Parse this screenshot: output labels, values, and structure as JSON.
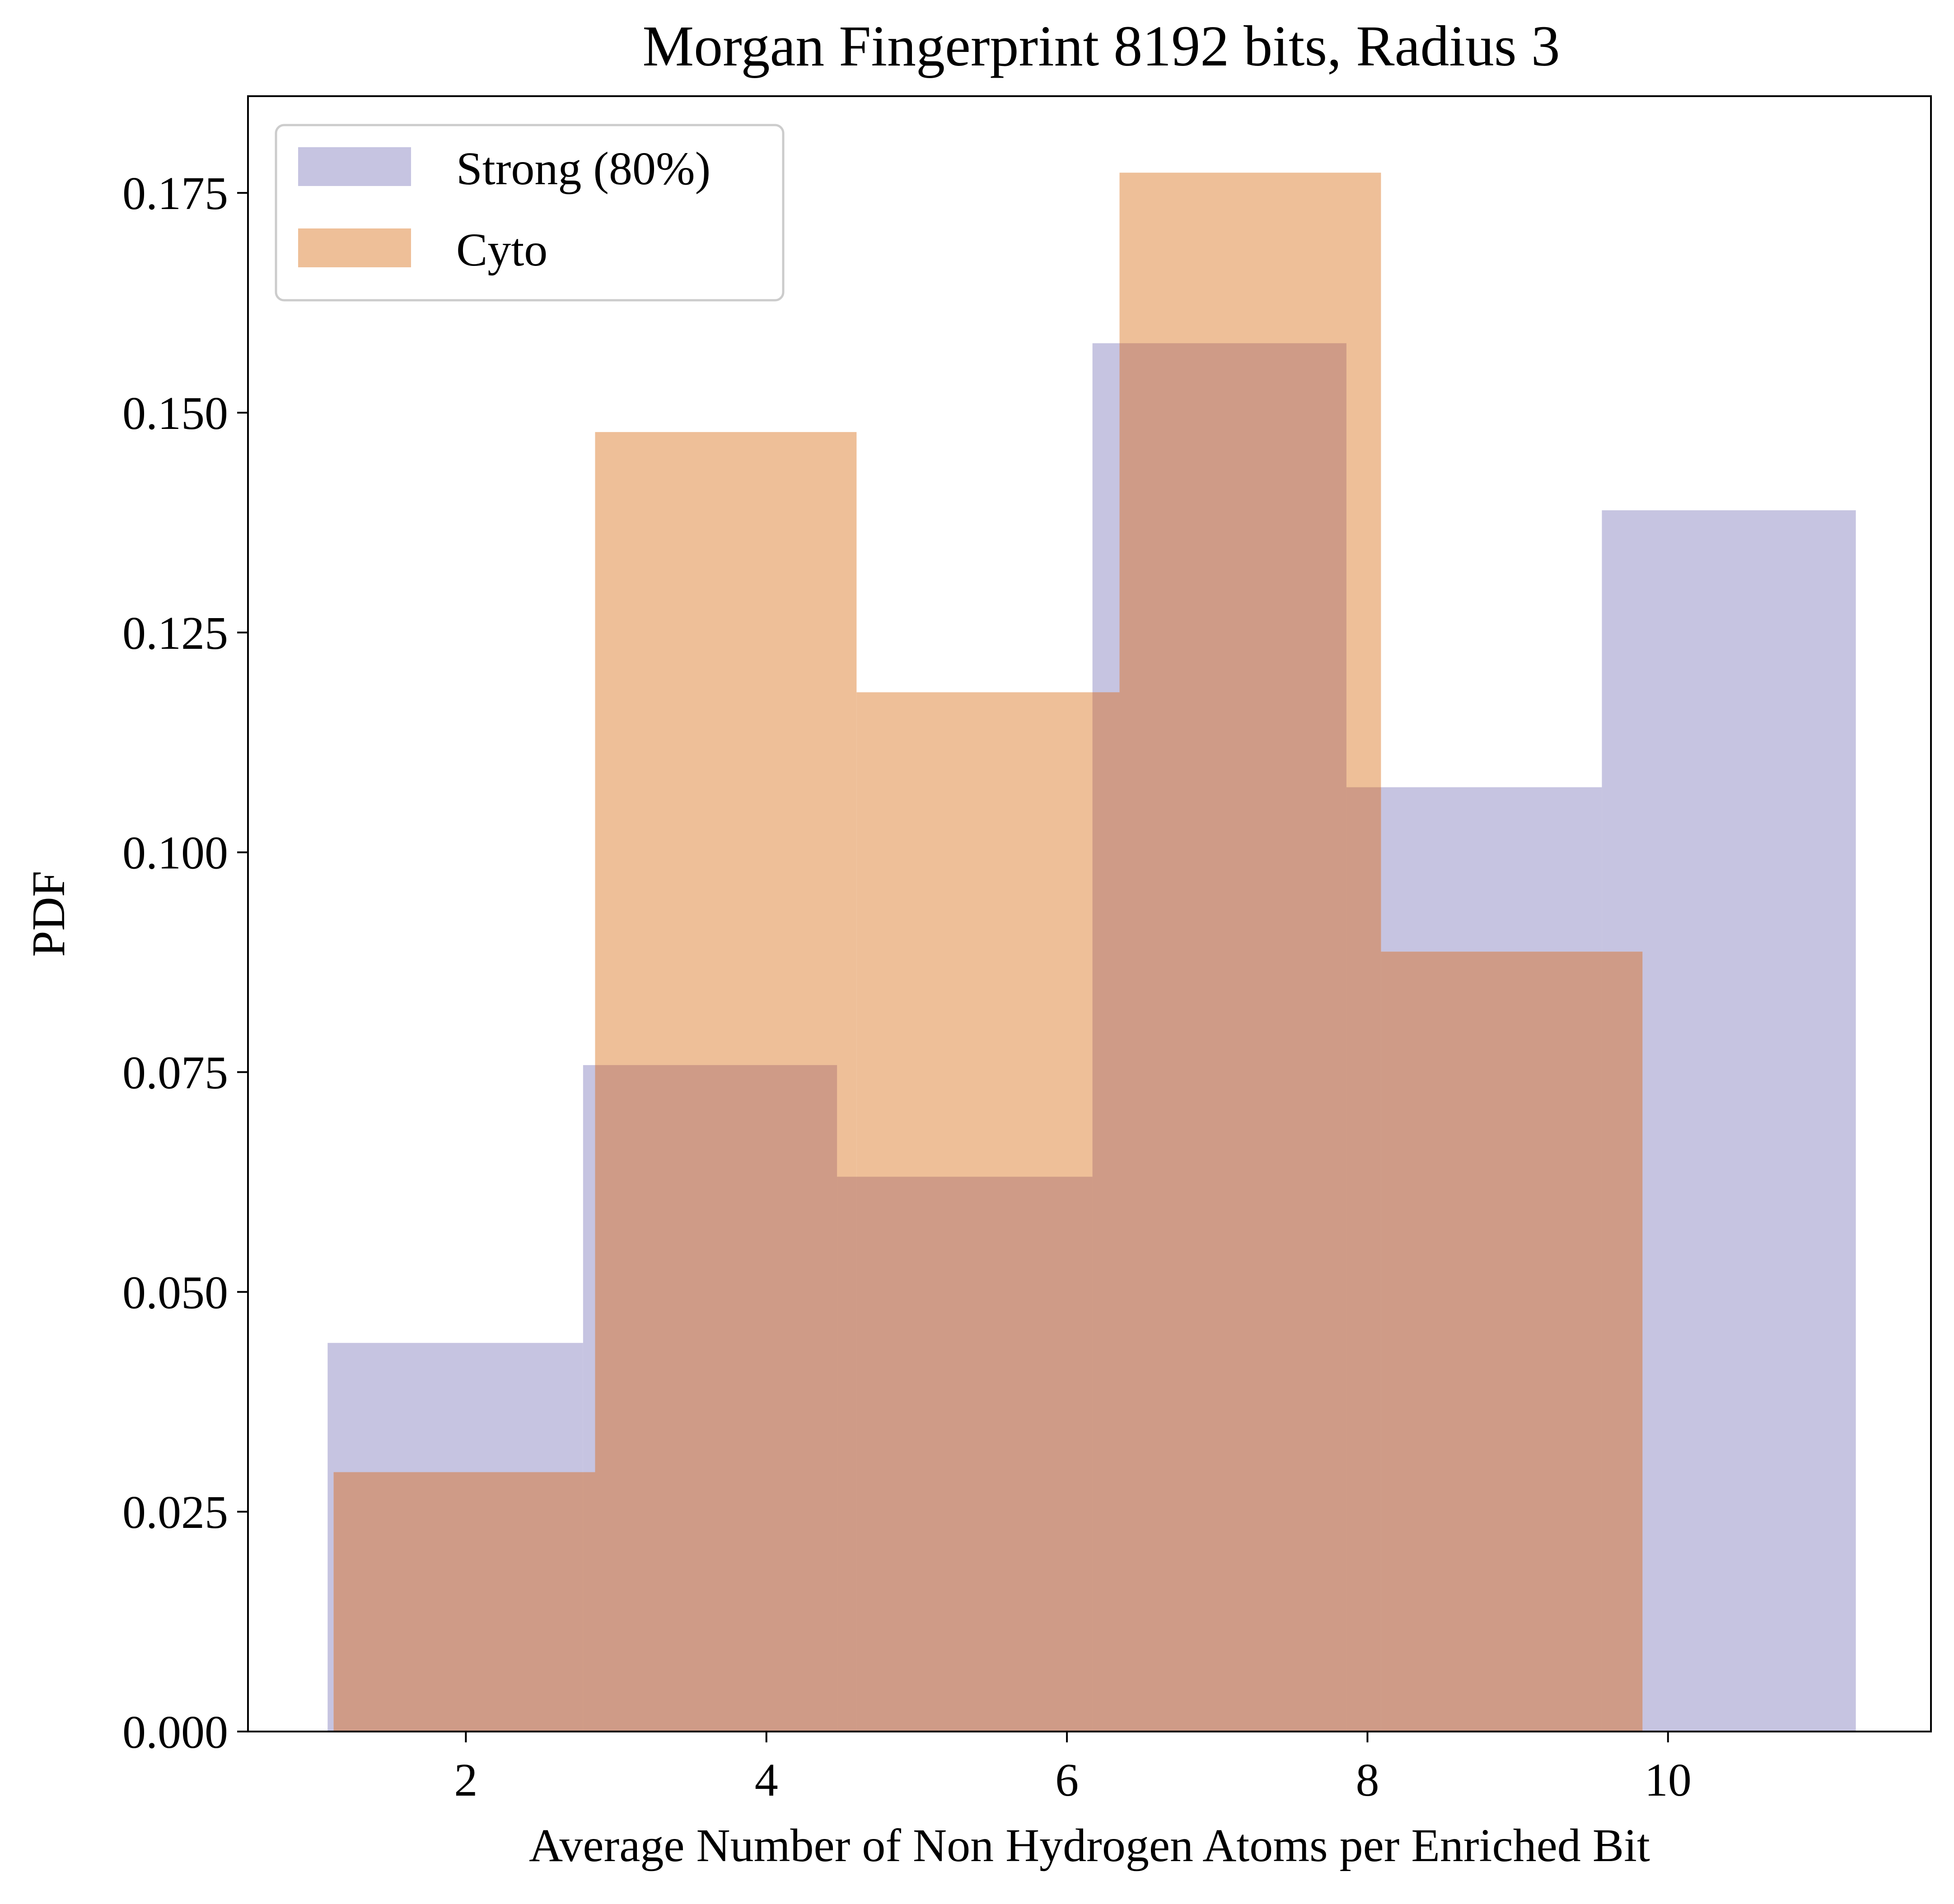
{
  "chart_data": {
    "type": "histogram",
    "title": "Morgan Fingerprint 8192 bits, Radius 3",
    "xlabel": "Average Number of Non Hydrogen Atoms per Enriched Bit",
    "ylabel": "PDF",
    "xlim": [
      0.55,
      11.75
    ],
    "ylim": [
      0.0,
      0.186
    ],
    "x_ticks": [
      2,
      4,
      6,
      8,
      10
    ],
    "x_tick_labels": [
      "2",
      "4",
      "6",
      "8",
      "10"
    ],
    "y_ticks": [
      0.0,
      0.025,
      0.05,
      0.075,
      0.1,
      0.125,
      0.15,
      0.175
    ],
    "y_tick_labels": [
      "0.000",
      "0.025",
      "0.050",
      "0.075",
      "0.100",
      "0.125",
      "0.150",
      "0.175"
    ],
    "grid": false,
    "legend_position": "upper-left",
    "series": [
      {
        "name": "Strong (80%)",
        "color": "#c6c4e1",
        "bin_edges": [
          1.08,
          2.78,
          4.47,
          6.17,
          7.86,
          9.56,
          11.25
        ],
        "values": [
          0.0442,
          0.0758,
          0.0631,
          0.1579,
          0.1074,
          0.1389
        ]
      },
      {
        "name": "Cyto",
        "color": "#eebf98",
        "bin_edges": [
          1.12,
          2.86,
          4.6,
          6.35,
          8.09,
          9.83
        ],
        "values": [
          0.0295,
          0.1478,
          0.1182,
          0.1773,
          0.0887
        ]
      }
    ],
    "overlap_color": "#cf9b87"
  }
}
